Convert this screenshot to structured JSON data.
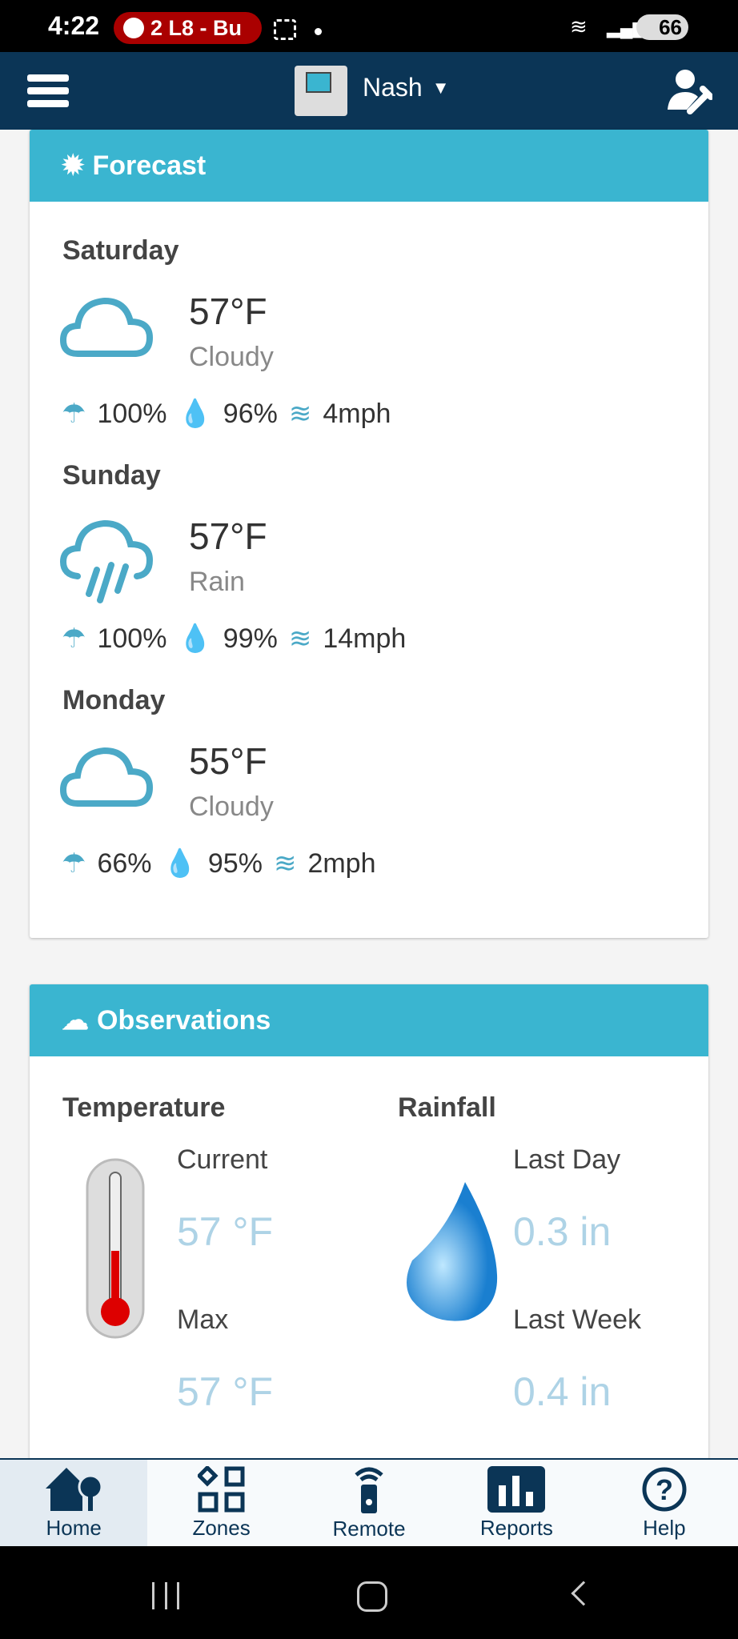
{
  "status_bar": {
    "time": "4:22",
    "media_pill": "2 L8 - Bu",
    "battery": "66"
  },
  "app_bar": {
    "controller_name": "Nash"
  },
  "forecast": {
    "title": "Forecast",
    "days": [
      {
        "day": "Saturday",
        "temp": "57°F",
        "condition": "Cloudy",
        "icon": "cloud-icon",
        "precip": "100%",
        "humidity": "96%",
        "wind": "4mph"
      },
      {
        "day": "Sunday",
        "temp": "57°F",
        "condition": "Rain",
        "icon": "rain-icon",
        "precip": "100%",
        "humidity": "99%",
        "wind": "14mph"
      },
      {
        "day": "Monday",
        "temp": "55°F",
        "condition": "Cloudy",
        "icon": "cloud-icon",
        "precip": "66%",
        "humidity": "95%",
        "wind": "2mph"
      }
    ]
  },
  "observations": {
    "title": "Observations",
    "temperature": {
      "heading": "Temperature",
      "current_label": "Current",
      "current_value": "57 °F",
      "max_label": "Max",
      "max_value": "57 °F"
    },
    "rainfall": {
      "heading": "Rainfall",
      "day_label": "Last Day",
      "day_value": "0.3 in",
      "week_label": "Last Week",
      "week_value": "0.4 in"
    }
  },
  "bottom_nav": [
    {
      "label": "Home",
      "active": true
    },
    {
      "label": "Zones"
    },
    {
      "label": "Remote"
    },
    {
      "label": "Reports"
    },
    {
      "label": "Help"
    }
  ],
  "colors": {
    "navy": "#0b3556",
    "teal": "#3ab5d0",
    "value": "#aed3e6"
  }
}
